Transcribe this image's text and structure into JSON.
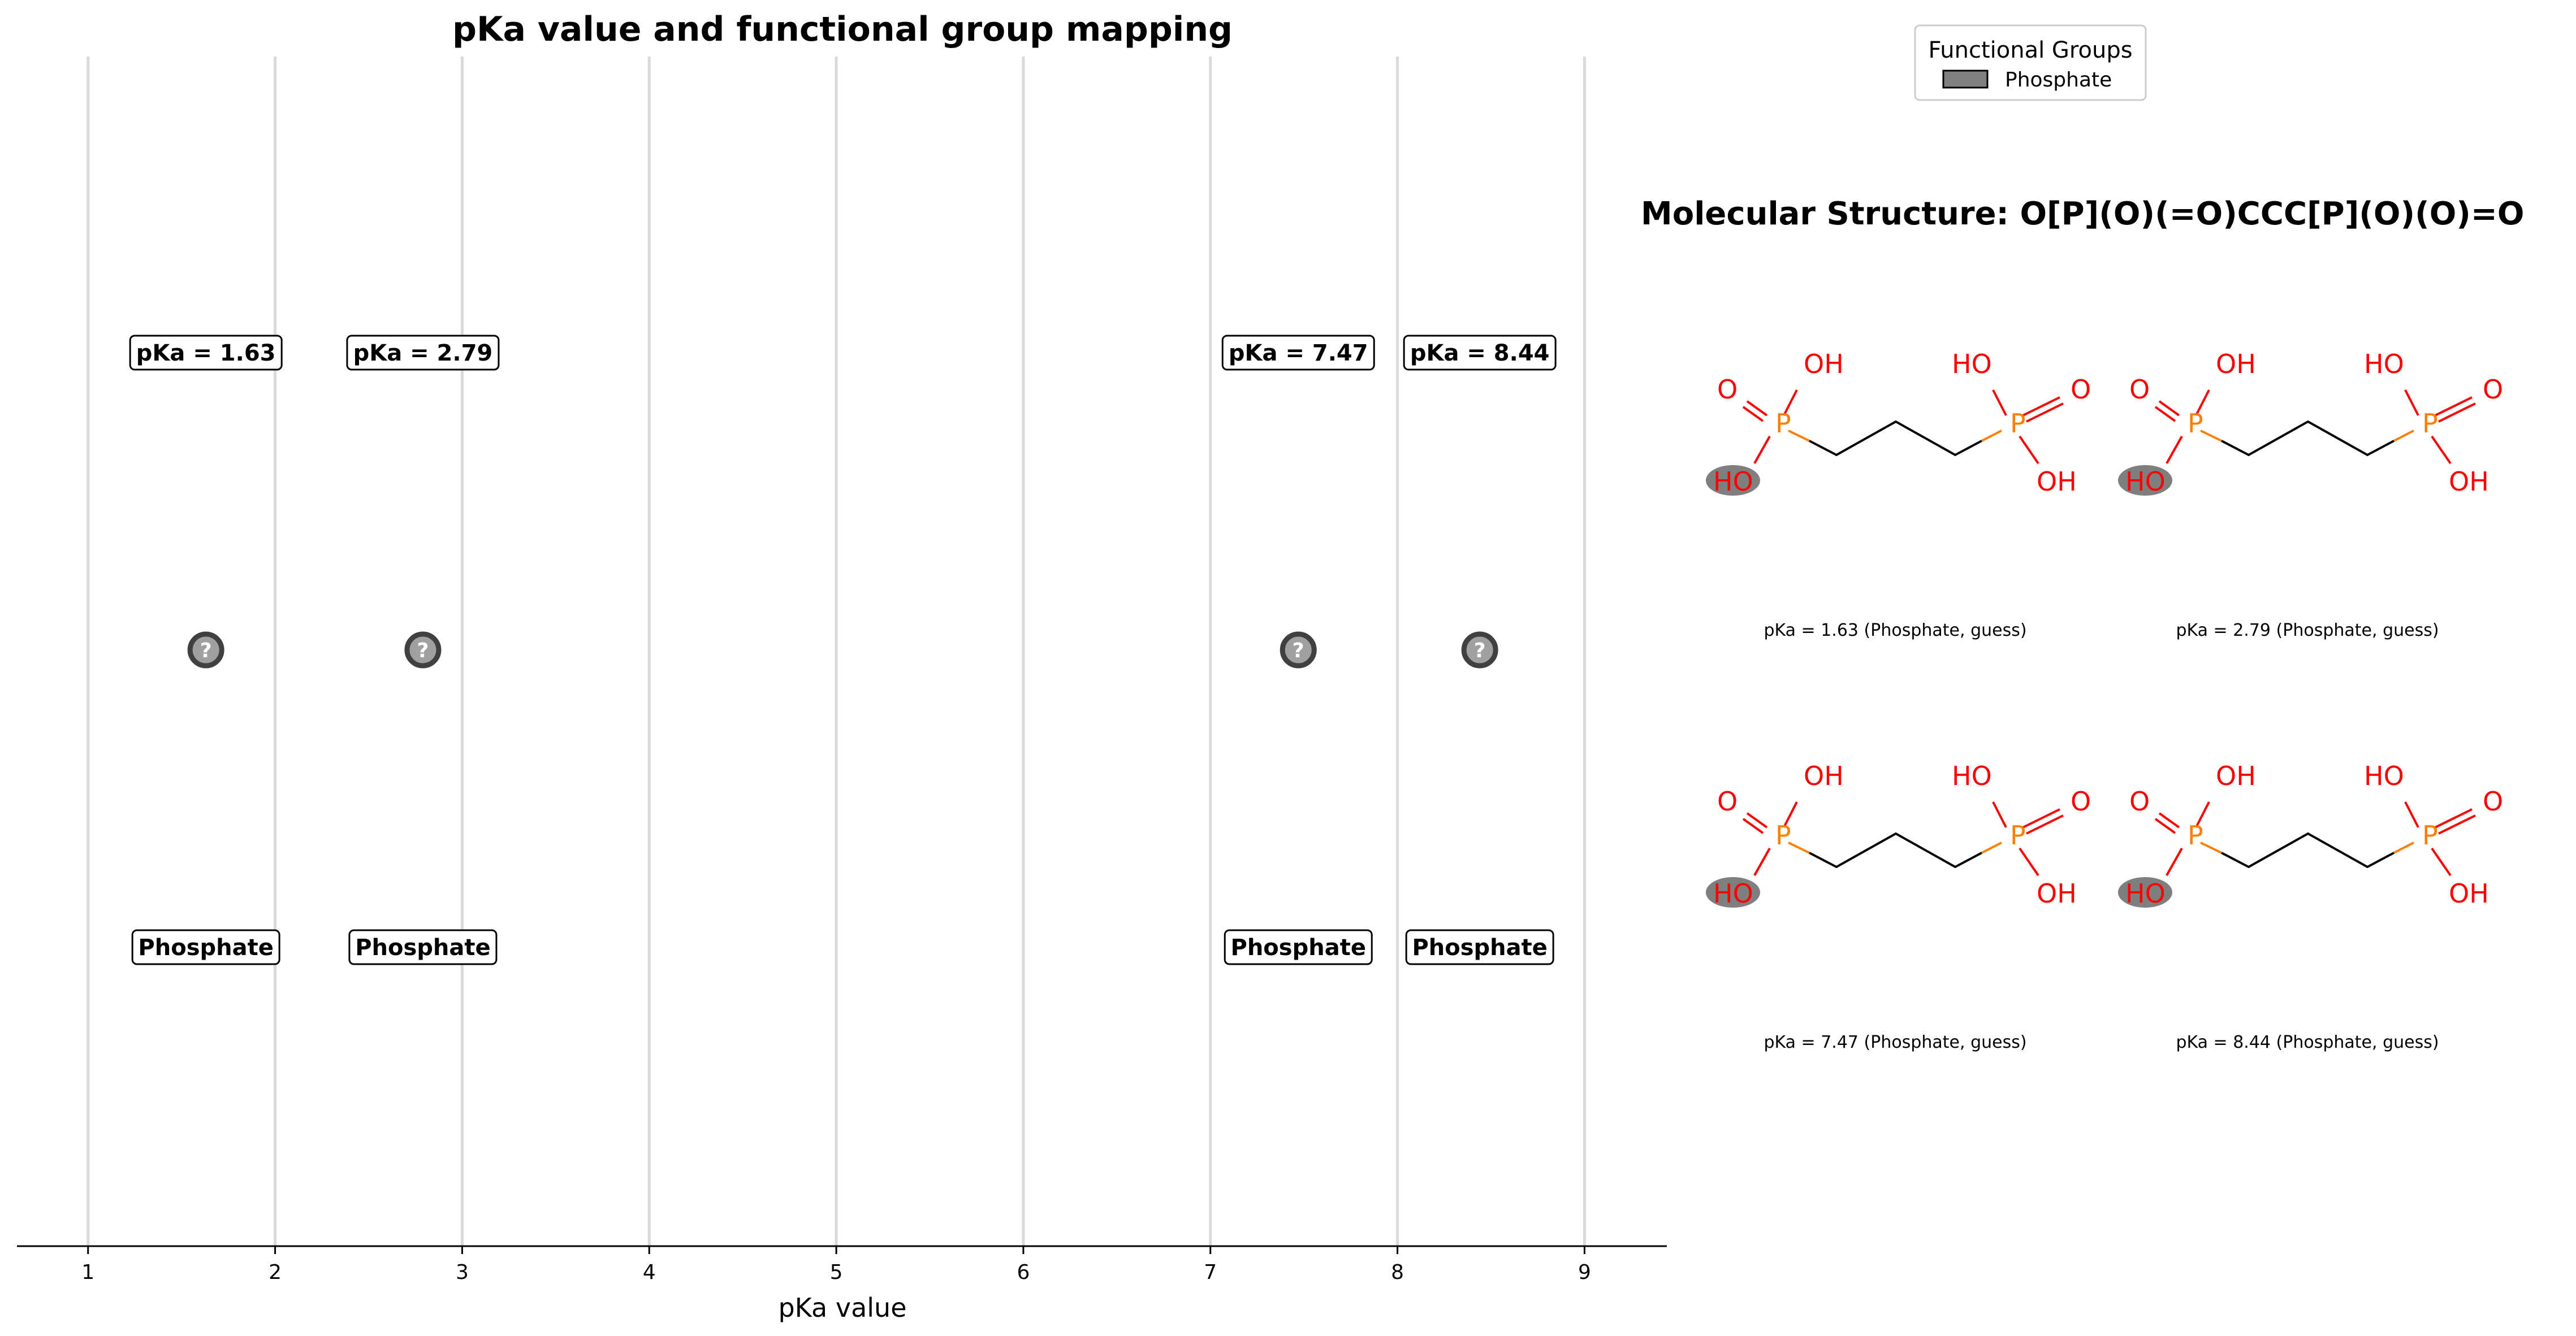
{
  "chart_data": {
    "type": "scatter",
    "title": "pKa value and functional group mapping",
    "xlabel": "pKa value",
    "xlim": [
      0.62,
      9.44
    ],
    "xticks": [
      1,
      2,
      3,
      4,
      5,
      6,
      7,
      8,
      9
    ],
    "grid": "vertical",
    "points": [
      {
        "pka": 1.63,
        "group": "Phosphate",
        "pka_label": "pKa = 1.63",
        "marker": "?"
      },
      {
        "pka": 2.79,
        "group": "Phosphate",
        "pka_label": "pKa = 2.79",
        "marker": "?"
      },
      {
        "pka": 7.47,
        "group": "Phosphate",
        "pka_label": "pKa = 7.47",
        "marker": "?"
      },
      {
        "pka": 8.44,
        "group": "Phosphate",
        "pka_label": "pKa = 8.44",
        "marker": "?"
      }
    ],
    "legend": {
      "title": "Functional Groups",
      "placement": "top-right",
      "entries": [
        {
          "name": "Phosphate",
          "color": "#808080"
        }
      ]
    }
  },
  "structure": {
    "title": "Molecular Structure: O[P](O)(=O)CCC[P](O)(O)=O",
    "captions": [
      "pKa = 1.63 (Phosphate, guess)",
      "pKa = 2.79 (Phosphate, guess)",
      "pKa = 7.47 (Phosphate, guess)",
      "pKa = 8.44 (Phosphate, guess)"
    ],
    "atom_labels": {
      "O": "O",
      "OH": "OH",
      "HO": "HO",
      "P": "P"
    }
  },
  "colors": {
    "phosphorus": "#FF8000",
    "oxygen": "#FF0000",
    "highlight": "#7F7F7F",
    "marker_fill": "#A0A0A0",
    "marker_edge": "#404040",
    "grid": "#D9D9D9"
  }
}
